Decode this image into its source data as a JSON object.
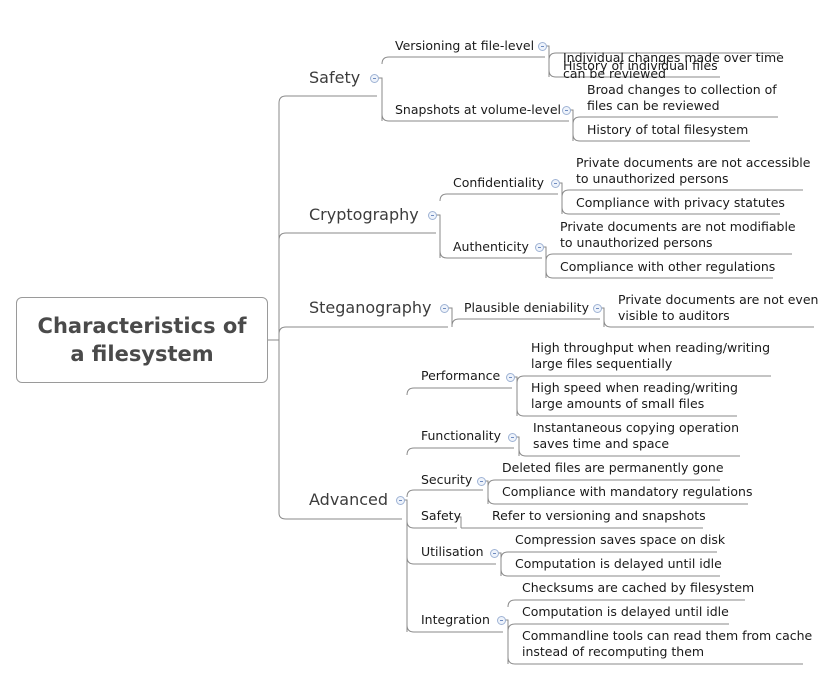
{
  "title": "Characteristics of a filesystem",
  "categories": {
    "safety": {
      "label": "Safety",
      "versioning": {
        "label": "Versioning at file-level",
        "leaves": [
          "Individual changes made over time\ncan be reviewed",
          "History of individual files"
        ]
      },
      "snapshots": {
        "label": "Snapshots at volume-level",
        "leaves": [
          "Broad changes to collection of\nfiles can be reviewed",
          "History of total filesystem"
        ]
      }
    },
    "cryptography": {
      "label": "Cryptography",
      "confidentiality": {
        "label": "Confidentiality",
        "leaves": [
          "Private documents are not accessible\nto unauthorized persons",
          "Compliance with privacy statutes"
        ]
      },
      "authenticity": {
        "label": "Authenticity",
        "leaves": [
          "Private documents are not modifiable\nto unauthorized persons",
          "Compliance with other regulations"
        ]
      }
    },
    "steganography": {
      "label": "Steganography",
      "plausible": {
        "label": "Plausible deniability",
        "leaves": [
          "Private documents are not even\nvisible to auditors"
        ]
      }
    },
    "advanced": {
      "label": "Advanced",
      "performance": {
        "label": "Performance",
        "leaves": [
          "High throughput when reading/writing\nlarge files sequentially",
          "High speed when reading/writing\nlarge amounts of small files"
        ]
      },
      "functionality": {
        "label": "Functionality",
        "leaves": [
          "Instantaneous copying operation\nsaves time and space"
        ]
      },
      "security": {
        "label": "Security",
        "leaves": [
          "Deleted files are permanently gone",
          "Compliance with mandatory regulations"
        ]
      },
      "safety": {
        "label": "Safety",
        "leaves": [
          "Refer to versioning and snapshots"
        ]
      },
      "utilisation": {
        "label": "Utilisation",
        "leaves": [
          "Compression saves space on disk",
          "Computation is delayed until idle"
        ]
      },
      "integration": {
        "label": "Integration",
        "leaves": [
          "Checksums are cached by filesystem",
          "Computation is delayed until idle",
          "Commandline tools can read them from cache\ninstead of recomputing them"
        ]
      }
    }
  }
}
